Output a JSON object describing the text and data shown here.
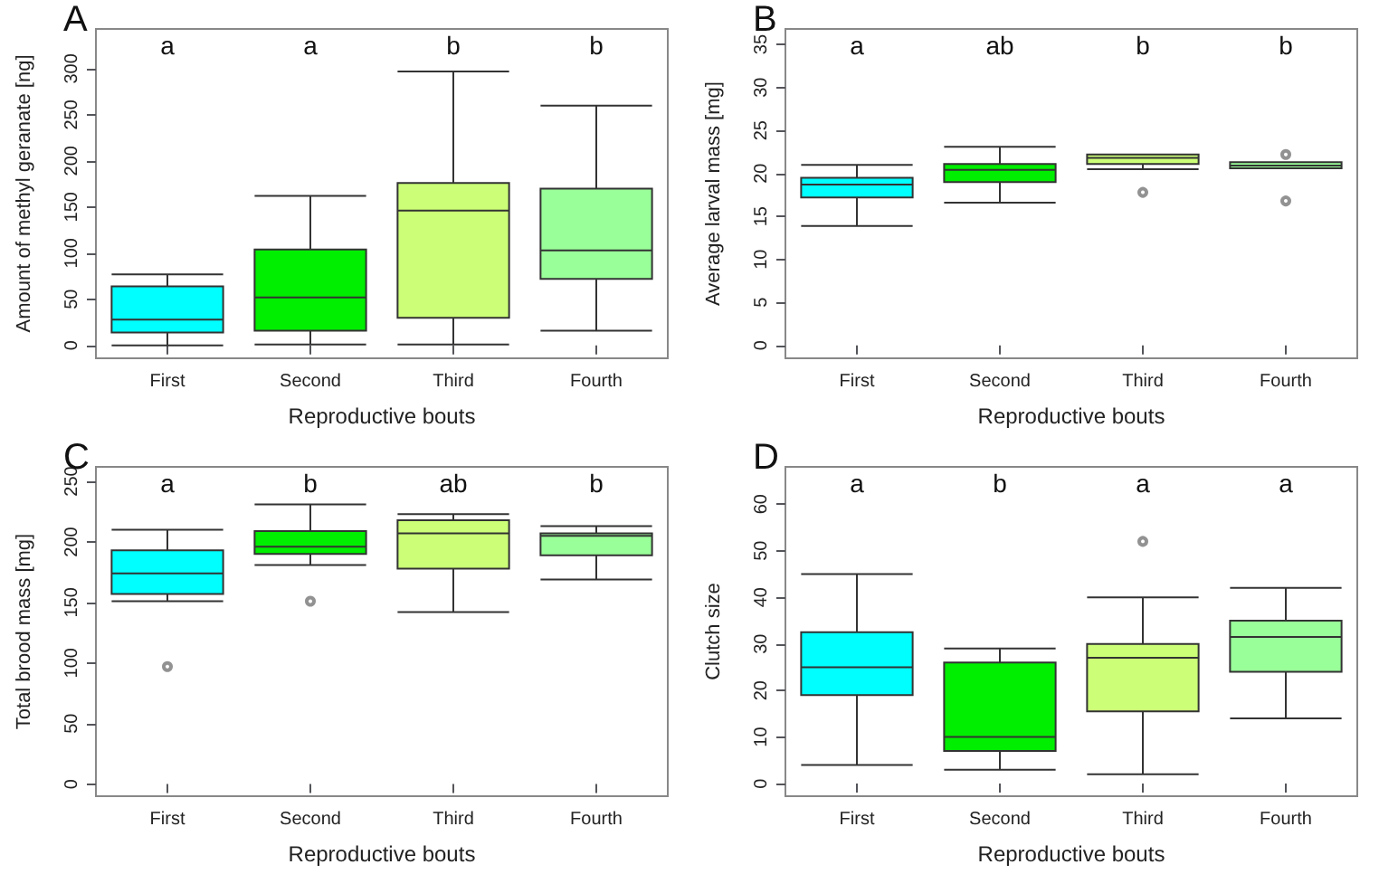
{
  "chart_data": [
    {
      "type": "box",
      "title": "A",
      "xlabel": "Reproductive bouts",
      "ylabel": "Amount of methyl geranate [ng]",
      "categories": [
        "First",
        "Second",
        "Third",
        "Fourth"
      ],
      "colors": [
        "#00ffff",
        "#00ee00",
        "#ccff77",
        "#99ff99"
      ],
      "ylim": [
        -14,
        343
      ],
      "yticks": [
        0,
        50,
        100,
        150,
        200,
        250,
        300
      ],
      "boxes": [
        {
          "low": 0,
          "q1": 14,
          "median": 28,
          "q3": 64,
          "high": 77
        },
        {
          "low": 1,
          "q1": 16,
          "median": 52,
          "q3": 104,
          "high": 162
        },
        {
          "low": 1,
          "q1": 30,
          "median": 146,
          "q3": 176,
          "high": 297
        },
        {
          "low": 16,
          "q1": 72,
          "median": 103,
          "q3": 170,
          "high": 260
        }
      ],
      "annotations": [
        "a",
        "a",
        "b",
        "b"
      ]
    },
    {
      "type": "box",
      "title": "B",
      "xlabel": "Reproductive bouts",
      "ylabel": "Average larval mass [mg]",
      "categories": [
        "First",
        "Second",
        "Third",
        "Fourth"
      ],
      "colors": [
        "#00ffff",
        "#00ee00",
        "#ccff77",
        "#99ff99"
      ],
      "ylim": [
        -1.5,
        36.8
      ],
      "yticks": [
        0,
        5,
        10,
        15,
        20,
        25,
        30,
        35
      ],
      "boxes": [
        {
          "low": 13.9,
          "q1": 17.2,
          "median": 18.7,
          "q3": 19.5,
          "high": 21.0
        },
        {
          "low": 16.6,
          "q1": 19.0,
          "median": 20.4,
          "q3": 21.1,
          "high": 23.1
        },
        {
          "low": 20.5,
          "q1": 21.1,
          "median": 21.8,
          "q3": 22.2,
          "high": 22.2,
          "outliers": [
            17.8
          ]
        },
        {
          "low": 20.6,
          "q1": 20.6,
          "median": 20.9,
          "q3": 21.3,
          "high": 21.3,
          "outliers": [
            22.2,
            16.8
          ]
        }
      ],
      "annotations": [
        "a",
        "ab",
        "b",
        "b"
      ]
    },
    {
      "type": "box",
      "title": "C",
      "xlabel": "Reproductive bouts",
      "ylabel": "Total brood mass [mg]",
      "categories": [
        "First",
        "Second",
        "Third",
        "Fourth"
      ],
      "colors": [
        "#00ffff",
        "#00ee00",
        "#ccff77",
        "#99ff99"
      ],
      "ylim": [
        -10,
        262
      ],
      "yticks": [
        0,
        50,
        100,
        150,
        200,
        250
      ],
      "boxes": [
        {
          "low": 151,
          "q1": 157,
          "median": 174,
          "q3": 193,
          "high": 210,
          "outliers": [
            97
          ]
        },
        {
          "low": 181,
          "q1": 190,
          "median": 196,
          "q3": 209,
          "high": 231,
          "outliers": [
            151
          ]
        },
        {
          "low": 142,
          "q1": 178,
          "median": 207,
          "q3": 218,
          "high": 223
        },
        {
          "low": 169,
          "q1": 189,
          "median": 205,
          "q3": 207,
          "high": 213
        }
      ],
      "annotations": [
        "a",
        "b",
        "ab",
        "b"
      ]
    },
    {
      "type": "box",
      "title": "D",
      "xlabel": "Reproductive bouts",
      "ylabel": "Clutch size",
      "categories": [
        "First",
        "Second",
        "Third",
        "Fourth"
      ],
      "colors": [
        "#00ffff",
        "#00ee00",
        "#ccff77",
        "#99ff99"
      ],
      "ylim": [
        -2.7,
        68
      ],
      "yticks": [
        0,
        10,
        20,
        30,
        40,
        50,
        60
      ],
      "boxes": [
        {
          "low": 4,
          "q1": 19,
          "median": 25,
          "q3": 32.5,
          "high": 45
        },
        {
          "low": 3,
          "q1": 7,
          "median": 10,
          "q3": 26,
          "high": 29
        },
        {
          "low": 2,
          "q1": 15.5,
          "median": 27,
          "q3": 30,
          "high": 40,
          "outliers": [
            52
          ]
        },
        {
          "low": 14,
          "q1": 24,
          "median": 31.5,
          "q3": 35,
          "high": 42
        }
      ],
      "annotations": [
        "a",
        "b",
        "a",
        "a"
      ]
    }
  ]
}
